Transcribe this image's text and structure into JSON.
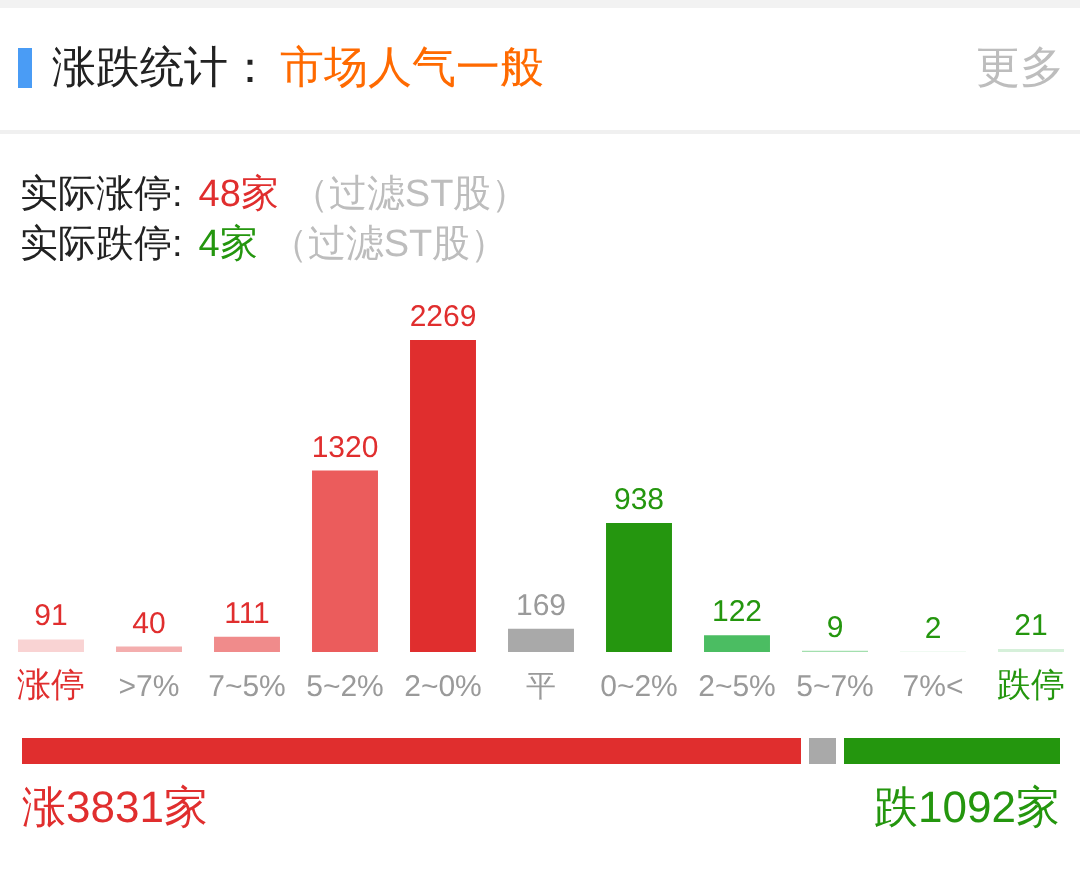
{
  "chart_data": [
    {
      "type": "bar",
      "title": "涨跌统计：",
      "subtitle": "市场人气一般",
      "annotations": [
        "更多",
        "实际涨停: 48家 （过滤ST股）",
        "实际跌停: 4家 （过滤ST股）"
      ],
      "categories": [
        "涨停",
        ">7%",
        "7~5%",
        "5~2%",
        "2~0%",
        "平",
        "0~2%",
        "2~5%",
        "5~7%",
        "7%<",
        "跌停"
      ],
      "values": [
        91,
        40,
        111,
        1320,
        2269,
        169,
        938,
        122,
        9,
        2,
        21
      ],
      "colors": [
        "#f9d3d3",
        "#f4aeae",
        "#f08b8b",
        "#eb5c5c",
        "#e02e2e",
        "#a9a9a9",
        "#25960f",
        "#4bbd62",
        "#a3dfae",
        "#c4ebcb",
        "#d6f0da"
      ],
      "data_labels": true
    },
    {
      "type": "bar",
      "orientation": "horizontal",
      "stacked": true,
      "categories": [
        null
      ],
      "series": [
        {
          "color": "#e02e2e",
          "values": [
            3831
          ],
          "value_labels": [
            "涨3831家"
          ]
        },
        {
          "color": "#a9a9a9",
          "values": [
            169
          ]
        },
        {
          "color": "#24960e",
          "values": [
            1092
          ],
          "value_labels": [
            "跌1092家"
          ]
        }
      ]
    }
  ]
}
